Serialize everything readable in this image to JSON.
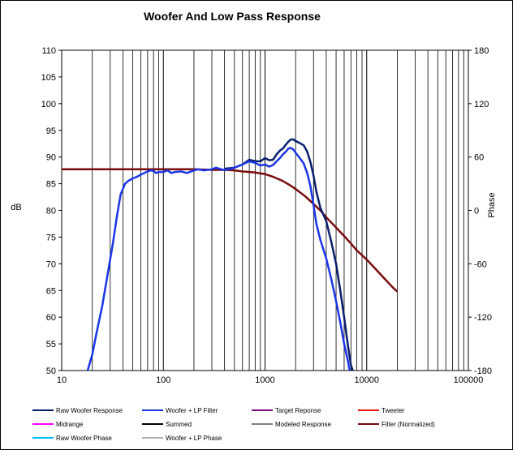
{
  "chart_data": {
    "type": "line",
    "title": "Woofer  And  Low Pass  Response",
    "xlabel": "",
    "ylabel": "dB",
    "y2label": "Phase",
    "xscale": "log",
    "xlim": [
      10,
      100000
    ],
    "ylim": [
      50,
      110
    ],
    "y2lim": [
      -180,
      180
    ],
    "x_ticks": [
      10,
      100,
      1000,
      10000,
      100000
    ],
    "x_tick_labels": [
      "10",
      "100",
      "1000",
      "10000",
      "100000"
    ],
    "y_ticks": [
      50,
      55,
      60,
      65,
      70,
      75,
      80,
      85,
      90,
      95,
      100,
      105,
      110
    ],
    "y2_ticks": [
      -180,
      -120,
      -60,
      0,
      60,
      120,
      180
    ],
    "grid": "vertical",
    "series": [
      {
        "name": "Raw Woofer Response",
        "color": "#0a1e6e",
        "width": 2.5,
        "points": [
          [
            400,
            87.8
          ],
          [
            500,
            88
          ],
          [
            600,
            88.6
          ],
          [
            700,
            89.5
          ],
          [
            800,
            89.2
          ],
          [
            900,
            89.2
          ],
          [
            1000,
            89.8
          ],
          [
            1100,
            89.4
          ],
          [
            1200,
            89.5
          ],
          [
            1300,
            90.5
          ],
          [
            1400,
            91.2
          ],
          [
            1500,
            91.6
          ],
          [
            1600,
            92.3
          ],
          [
            1700,
            92.9
          ],
          [
            1800,
            93.3
          ],
          [
            1900,
            93.3
          ],
          [
            2000,
            93
          ],
          [
            2200,
            92.6
          ],
          [
            2400,
            92.2
          ],
          [
            2600,
            91
          ],
          [
            2800,
            89
          ],
          [
            3000,
            86.5
          ],
          [
            3200,
            83.5
          ],
          [
            3500,
            80.5
          ],
          [
            4000,
            78
          ],
          [
            4500,
            74
          ],
          [
            5000,
            70
          ],
          [
            5500,
            65
          ],
          [
            6000,
            60
          ],
          [
            6500,
            55
          ],
          [
            7000,
            51
          ],
          [
            7300,
            50
          ]
        ]
      },
      {
        "name": "Woofer + LP Filter",
        "color": "#1a35e6",
        "width": 2.5,
        "points": [
          [
            18,
            50
          ],
          [
            20,
            53
          ],
          [
            22,
            57
          ],
          [
            25,
            62
          ],
          [
            28,
            67.5
          ],
          [
            32,
            74
          ],
          [
            35,
            79
          ],
          [
            38,
            83
          ],
          [
            42,
            85
          ],
          [
            45,
            85.5
          ],
          [
            50,
            86
          ],
          [
            55,
            86.3
          ],
          [
            60,
            86.7
          ],
          [
            65,
            87
          ],
          [
            70,
            87.3
          ],
          [
            75,
            87.5
          ],
          [
            80,
            87.4
          ],
          [
            85,
            87
          ],
          [
            90,
            87.2
          ],
          [
            100,
            87.2
          ],
          [
            110,
            87.5
          ],
          [
            120,
            87
          ],
          [
            130,
            87.2
          ],
          [
            150,
            87.3
          ],
          [
            170,
            87
          ],
          [
            200,
            87.5
          ],
          [
            220,
            87.7
          ],
          [
            250,
            87.5
          ],
          [
            300,
            87.7
          ],
          [
            330,
            88
          ],
          [
            370,
            87.7
          ],
          [
            400,
            87.6
          ],
          [
            450,
            87.7
          ],
          [
            500,
            88
          ],
          [
            600,
            88.6
          ],
          [
            700,
            89.2
          ],
          [
            800,
            88.9
          ],
          [
            900,
            88.4
          ],
          [
            1000,
            88.6
          ],
          [
            1100,
            88.2
          ],
          [
            1200,
            88.5
          ],
          [
            1300,
            89.2
          ],
          [
            1400,
            89.8
          ],
          [
            1500,
            90.5
          ],
          [
            1600,
            91
          ],
          [
            1700,
            91.6
          ],
          [
            1800,
            91.7
          ],
          [
            1900,
            91.4
          ],
          [
            2000,
            90.8
          ],
          [
            2200,
            89.8
          ],
          [
            2400,
            88.8
          ],
          [
            2600,
            87
          ],
          [
            2800,
            84.5
          ],
          [
            3000,
            81
          ],
          [
            3200,
            77.5
          ],
          [
            3500,
            74.5
          ],
          [
            4000,
            71
          ],
          [
            4500,
            67
          ],
          [
            5000,
            63
          ],
          [
            5500,
            59
          ],
          [
            6000,
            55
          ],
          [
            6500,
            52
          ],
          [
            6800,
            50
          ]
        ]
      },
      {
        "name": "Filter (Normalized)",
        "color": "#7a0a0a",
        "width": 2.5,
        "points": [
          [
            10,
            87.7
          ],
          [
            100,
            87.7
          ],
          [
            200,
            87.7
          ],
          [
            300,
            87.6
          ],
          [
            400,
            87.6
          ],
          [
            500,
            87.5
          ],
          [
            600,
            87.3
          ],
          [
            700,
            87.2
          ],
          [
            800,
            87.1
          ],
          [
            1000,
            86.8
          ],
          [
            1200,
            86.3
          ],
          [
            1500,
            85.5
          ],
          [
            1800,
            84.6
          ],
          [
            2000,
            84
          ],
          [
            2500,
            82.6
          ],
          [
            3000,
            81.2
          ],
          [
            3500,
            80
          ],
          [
            4000,
            78.7
          ],
          [
            5000,
            76.8
          ],
          [
            6000,
            75.2
          ],
          [
            7000,
            73.8
          ],
          [
            8000,
            72.5
          ],
          [
            10000,
            70.8
          ],
          [
            12000,
            69.2
          ],
          [
            15000,
            67.2
          ],
          [
            18000,
            65.6
          ],
          [
            20000,
            64.8
          ]
        ]
      }
    ],
    "legend": {
      "placement": "bottom",
      "entries": [
        {
          "label": "Raw Woofer Response",
          "color": "#0a1e6e"
        },
        {
          "label": "Woofer + LP Filter",
          "color": "#1a35e6"
        },
        {
          "label": "Target Reponse",
          "color": "#7b0a7b"
        },
        {
          "label": "Tweeter",
          "color": "#e61a0a"
        },
        {
          "label": "Midrange",
          "color": "#ff00ff"
        },
        {
          "label": "Summed",
          "color": "#000000"
        },
        {
          "label": "Modeled Response",
          "color": "#808080"
        },
        {
          "label": "Filter (Normalized)",
          "color": "#7a0a0a"
        },
        {
          "label": "Raw Woofer Phase",
          "color": "#00bfff"
        },
        {
          "label": "Woofer + LP  Phase",
          "color": "#b0b0b0"
        }
      ]
    }
  }
}
